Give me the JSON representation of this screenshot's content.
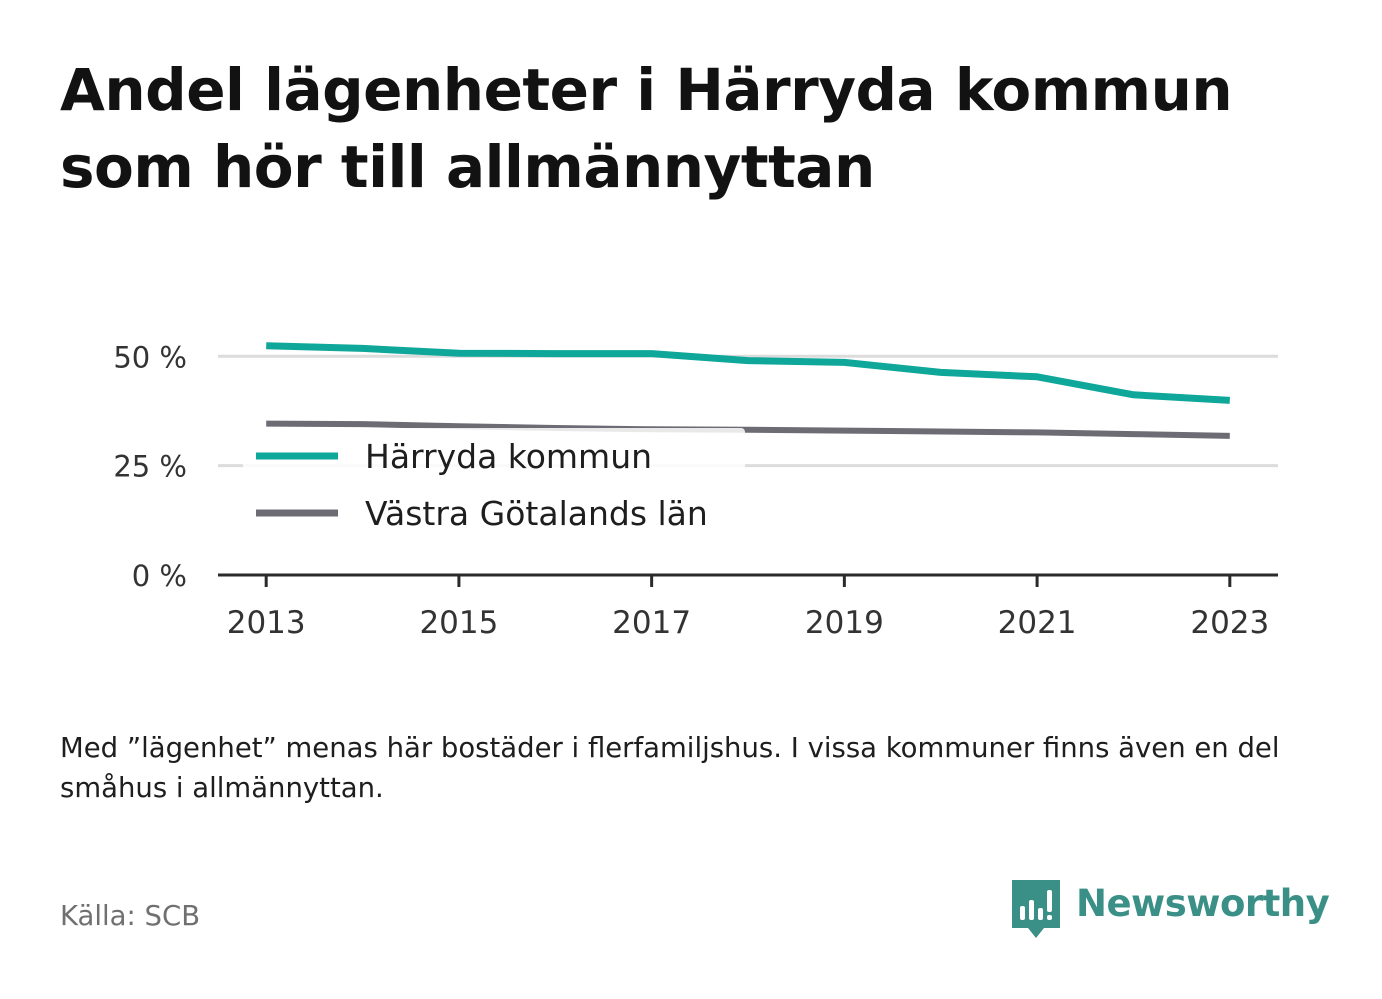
{
  "title": "Andel lägenheter i Härryda kommun som hör till allmännyttan",
  "note": "Med ”lägenhet” menas här bostäder i flerfamiljshus. I vissa kommuner finns även en del småhus i allmännyttan.",
  "source": "Källa: SCB",
  "brand": {
    "name": "Newsworthy",
    "icon": "newsworthy-logo-icon",
    "color": "#3a8f86"
  },
  "chart_data": {
    "type": "line",
    "x": [
      2013,
      2014,
      2015,
      2016,
      2017,
      2018,
      2019,
      2020,
      2021,
      2022,
      2023
    ],
    "series": [
      {
        "name": "Härryda kommun",
        "color": "#0fa79a",
        "values": [
          52.4,
          51.8,
          50.7,
          50.6,
          50.6,
          49.0,
          48.6,
          46.3,
          45.3,
          41.2,
          39.9
        ]
      },
      {
        "name": "Västra Götalands län",
        "color": "#6d6c75",
        "values": [
          34.6,
          34.5,
          34.0,
          33.6,
          33.3,
          33.2,
          33.0,
          32.8,
          32.6,
          32.2,
          31.8
        ]
      }
    ],
    "yticks": [
      0,
      25,
      50
    ],
    "ytick_labels": [
      "0 %",
      "25 %",
      "50 %"
    ],
    "xticks": [
      2013,
      2015,
      2017,
      2019,
      2021,
      2023
    ],
    "xtick_labels": [
      "2013",
      "2015",
      "2017",
      "2019",
      "2021",
      "2023"
    ],
    "ylim": [
      0,
      56
    ],
    "xlim": [
      2012.5,
      2023.5
    ],
    "grid": true,
    "legend": "inside-bottom-left",
    "gridcolor": "#dcdcdc",
    "axiscolor": "#2b2b2b"
  }
}
